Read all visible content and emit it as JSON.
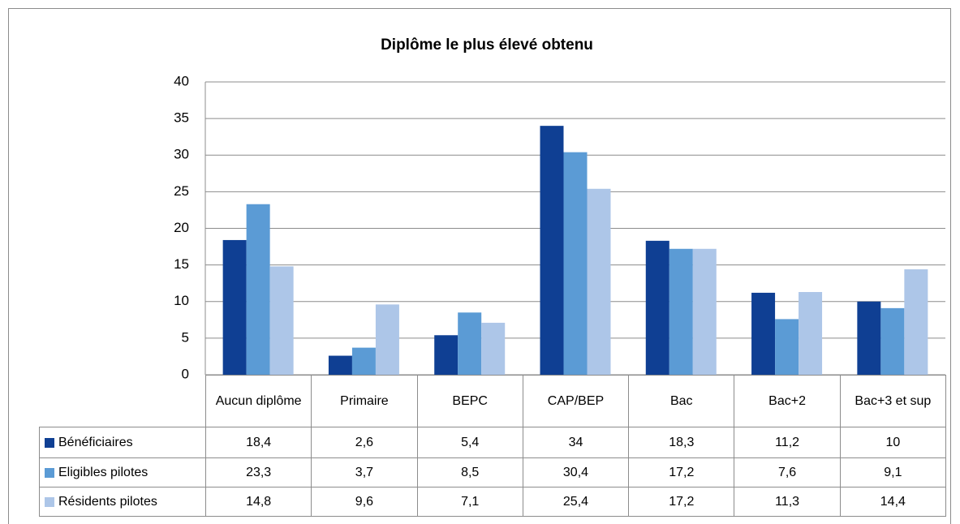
{
  "chart_data": {
    "type": "bar",
    "title": "Diplôme le plus élevé obtenu",
    "categories": [
      "Aucun diplôme",
      "Primaire",
      "BEPC",
      "CAP/BEP",
      "Bac",
      "Bac+2",
      "Bac+3 et sup"
    ],
    "series": [
      {
        "name": "Bénéficiaires",
        "color": "#0f3f93",
        "values": [
          18.4,
          2.6,
          5.4,
          34,
          18.3,
          11.2,
          10
        ],
        "value_labels": [
          "18,4",
          "2,6",
          "5,4",
          "34",
          "18,3",
          "11,2",
          "10"
        ]
      },
      {
        "name": "Eligibles pilotes",
        "color": "#5b9bd5",
        "values": [
          23.3,
          3.7,
          8.5,
          30.4,
          17.2,
          7.6,
          9.1
        ],
        "value_labels": [
          "23,3",
          "3,7",
          "8,5",
          "30,4",
          "17,2",
          "7,6",
          "9,1"
        ]
      },
      {
        "name": "Résidents pilotes",
        "color": "#adc6e8",
        "values": [
          14.8,
          9.6,
          7.1,
          25.4,
          17.2,
          11.3,
          14.4
        ],
        "value_labels": [
          "14,8",
          "9,6",
          "7,1",
          "25,4",
          "17,2",
          "11,3",
          "14,4"
        ]
      }
    ],
    "ylim": [
      0,
      40
    ],
    "yticks": [
      0,
      5,
      10,
      15,
      20,
      25,
      30,
      35,
      40
    ],
    "grid": true
  }
}
